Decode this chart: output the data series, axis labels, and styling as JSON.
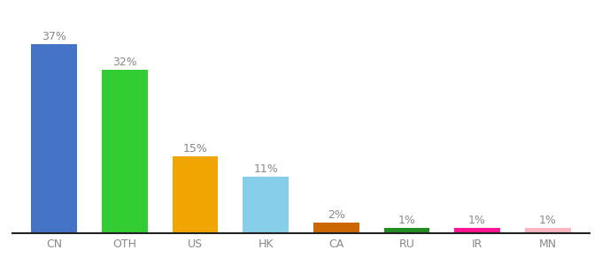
{
  "categories": [
    "CN",
    "OTH",
    "US",
    "HK",
    "CA",
    "RU",
    "IR",
    "MN"
  ],
  "values": [
    37,
    32,
    15,
    11,
    2,
    1,
    1,
    1
  ],
  "bar_colors": [
    "#4472c4",
    "#33cc33",
    "#f0a500",
    "#87ceeb",
    "#cc6600",
    "#228b22",
    "#ff1493",
    "#ffb6c1"
  ],
  "ylabel": "",
  "xlabel": "",
  "ylim": [
    0,
    42
  ],
  "label_fontsize": 9,
  "tick_fontsize": 9,
  "tick_color": "#888888",
  "label_color": "#888888",
  "background_color": "#ffffff"
}
